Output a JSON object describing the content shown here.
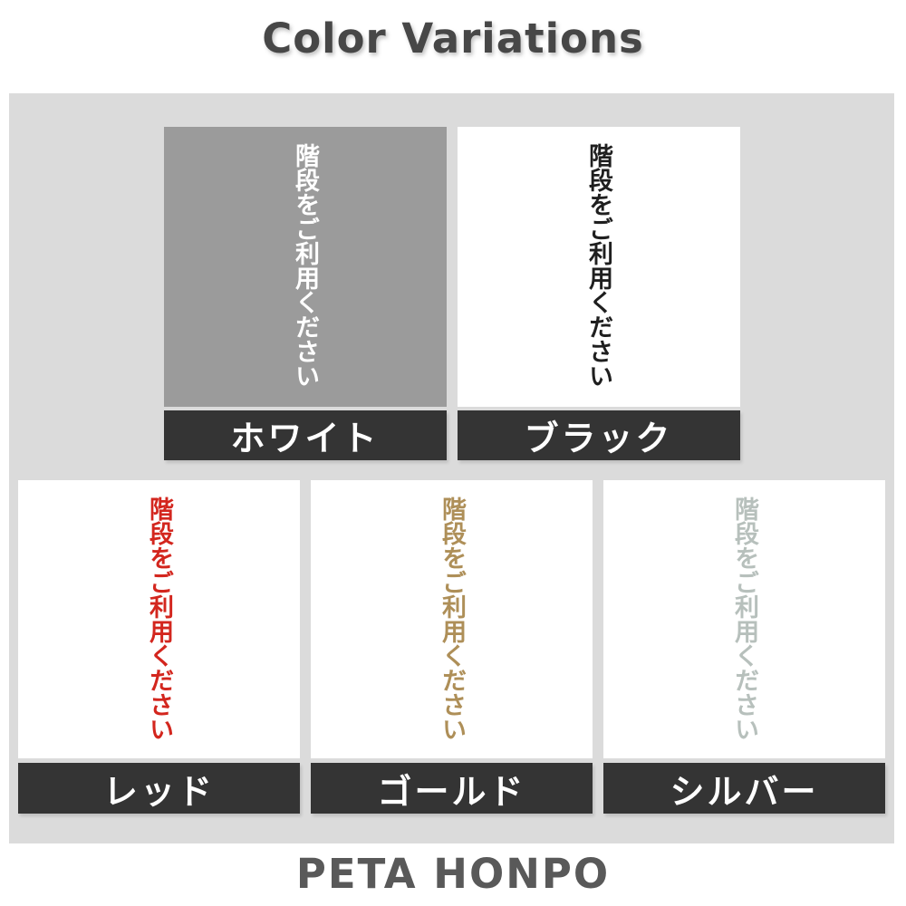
{
  "page": {
    "title": "Color Variations",
    "footer": "PETA HONPO"
  },
  "sample": {
    "text": "階段をご利用ください",
    "writing_direction": "vertical"
  },
  "colors": {
    "panel_bg": "#dbdbdb",
    "label_bar_bg": "#343434",
    "label_text": "#ffffff",
    "title_text": "#474747",
    "footer_text": "#595959",
    "page_bg": "#ffffff"
  },
  "variations": [
    {
      "id": "white",
      "label": "ホワイト",
      "swatch_bg": "#9b9b9b",
      "text_color": "#ffffff"
    },
    {
      "id": "black",
      "label": "ブラック",
      "swatch_bg": "#ffffff",
      "text_color": "#1f1f1f"
    },
    {
      "id": "red",
      "label": "レッド",
      "swatch_bg": "#ffffff",
      "text_color": "#d3261e"
    },
    {
      "id": "gold",
      "label": "ゴールド",
      "swatch_bg": "#ffffff",
      "text_color": "#ae8f58"
    },
    {
      "id": "silver",
      "label": "シルバー",
      "swatch_bg": "#ffffff",
      "text_color": "#b7c0bc"
    }
  ]
}
